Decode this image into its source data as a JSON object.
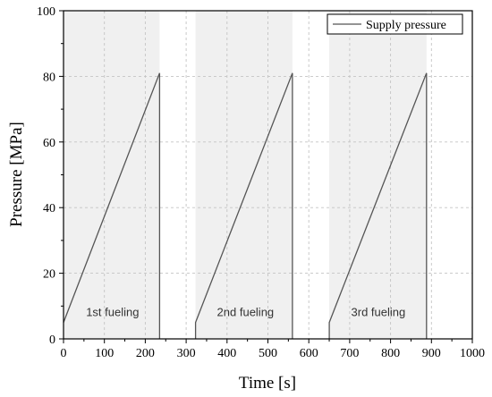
{
  "chart_data": {
    "type": "line",
    "xlabel": "Time [s]",
    "ylabel": "Pressure [MPa]",
    "xlim": [
      0,
      1000
    ],
    "ylim": [
      0,
      100
    ],
    "x_ticks": [
      "0",
      "100",
      "200",
      "300",
      "400",
      "500",
      "600",
      "700",
      "800",
      "900",
      "1000"
    ],
    "y_ticks": [
      "0",
      "20",
      "40",
      "60",
      "80",
      "100"
    ],
    "grid": true,
    "legend_position": "top-right",
    "series": [
      {
        "name": "Supply pressure",
        "color": "#555555",
        "segments": [
          [
            [
              0,
              5
            ],
            [
              235,
              81
            ],
            [
              235,
              0
            ]
          ],
          [
            [
              323,
              0
            ],
            [
              323,
              5
            ],
            [
              560,
              81
            ],
            [
              560,
              0
            ]
          ],
          [
            [
              650,
              0
            ],
            [
              650,
              5
            ],
            [
              888,
              81
            ],
            [
              888,
              0
            ]
          ]
        ]
      }
    ],
    "shaded_regions": [
      {
        "x": [
          0,
          235
        ],
        "color": "#f0f0f0"
      },
      {
        "x": [
          323,
          560
        ],
        "color": "#f0f0f0"
      },
      {
        "x": [
          650,
          888
        ],
        "color": "#f0f0f0"
      }
    ],
    "annotations": [
      {
        "text": "1st fueling",
        "x": 120,
        "y": 7
      },
      {
        "text": "2nd fueling",
        "x": 445,
        "y": 7
      },
      {
        "text": "3rd fueling",
        "x": 770,
        "y": 7
      }
    ]
  }
}
